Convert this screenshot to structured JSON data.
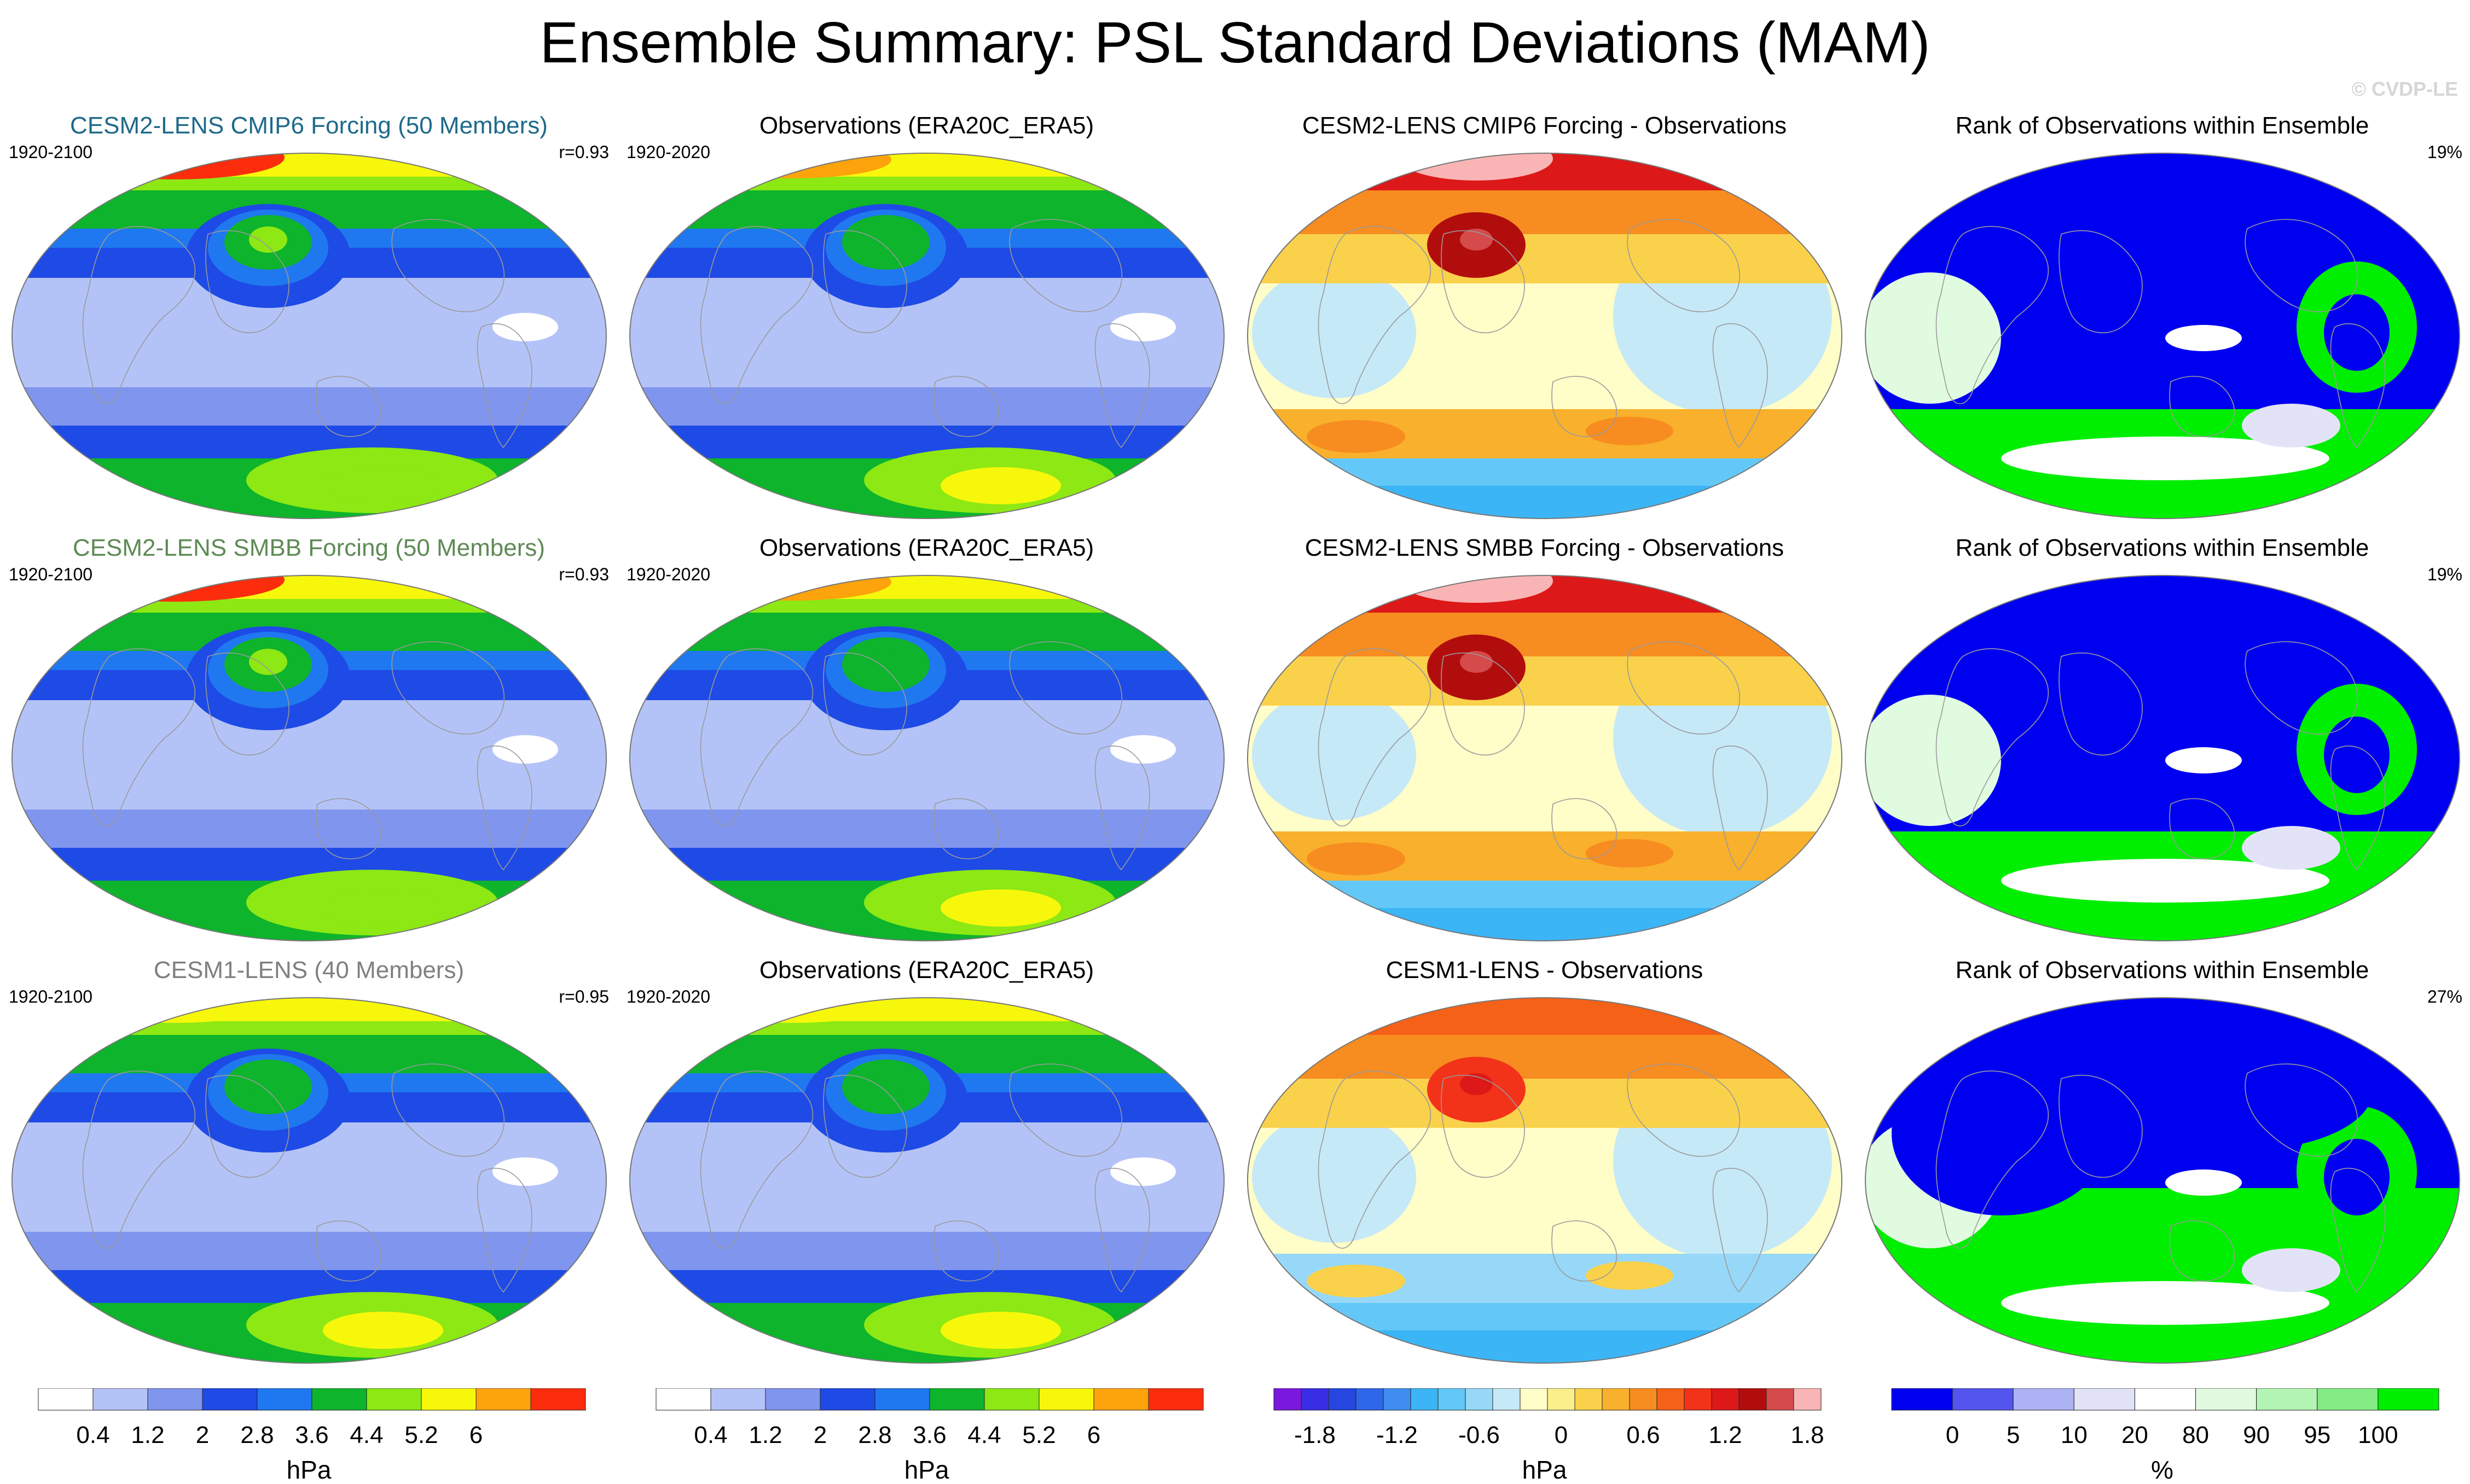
{
  "title": "Ensemble Summary: PSL Standard Deviations (MAM)",
  "watermark": "© CVDP-LE",
  "palettes": {
    "std": [
      "#ffffff",
      "#b4c3f7",
      "#7f95ee",
      "#1e4ae6",
      "#1f78f0",
      "#0db42c",
      "#8de813",
      "#f7f70c",
      "#fda30b",
      "#fb2d0d"
    ],
    "diff": [
      "#7a19dd",
      "#3a2de6",
      "#2646df",
      "#2e67ea",
      "#3f8df1",
      "#3cb5f6",
      "#63c8f7",
      "#97d8f8",
      "#c6e9f7",
      "#fffdc8",
      "#fbef8c",
      "#fad14a",
      "#f9b02c",
      "#f78c20",
      "#f56117",
      "#f2331a",
      "#dd1818",
      "#b20d0d",
      "#d54a4a",
      "#f9b5b5"
    ],
    "rank": [
      "#0000f0",
      "#5355ee",
      "#aeb3f5",
      "#e3e3f8",
      "#ffffff",
      "#e1fbe1",
      "#b4f4b4",
      "#82ec82",
      "#00ee00"
    ]
  },
  "chart_data": [
    {
      "type": "heatmap",
      "panel": "r1c1",
      "title": "CESM2-LENS CMIP6 Forcing (50 Members)",
      "title_color": "#1e6a8a",
      "period": "1920-2100",
      "corr": "r=0.93",
      "palette": "std",
      "max_level": 9,
      "nh_peak": 6,
      "sh_peak": 4
    },
    {
      "type": "heatmap",
      "panel": "r1c2",
      "title": "Observations (ERA20C_ERA5)",
      "title_color": "#000000",
      "period": "1920-2020",
      "corr": "",
      "palette": "std",
      "max_level": 8,
      "nh_peak": 5,
      "sh_peak": 5
    },
    {
      "type": "heatmap",
      "panel": "r1c3",
      "title": "CESM2-LENS CMIP6 Forcing - Observations",
      "title_color": "#000000",
      "period": "",
      "corr": "",
      "palette": "diff",
      "diff": "strong"
    },
    {
      "type": "heatmap",
      "panel": "r1c4",
      "title": "Rank of Observations within Ensemble",
      "title_color": "#000000",
      "period": "",
      "corr": "19%",
      "palette": "rank",
      "rank": "mostly-low"
    },
    {
      "type": "heatmap",
      "panel": "r2c1",
      "title": "CESM2-LENS SMBB Forcing (50 Members)",
      "title_color": "#5e8a55",
      "period": "1920-2100",
      "corr": "r=0.93",
      "palette": "std",
      "max_level": 9,
      "nh_peak": 6,
      "sh_peak": 4
    },
    {
      "type": "heatmap",
      "panel": "r2c2",
      "title": "Observations (ERA20C_ERA5)",
      "title_color": "#000000",
      "period": "1920-2020",
      "corr": "",
      "palette": "std",
      "max_level": 8,
      "nh_peak": 5,
      "sh_peak": 5
    },
    {
      "type": "heatmap",
      "panel": "r2c3",
      "title": "CESM2-LENS SMBB Forcing - Observations",
      "title_color": "#000000",
      "period": "",
      "corr": "",
      "palette": "diff",
      "diff": "strong"
    },
    {
      "type": "heatmap",
      "panel": "r2c4",
      "title": "Rank of Observations within Ensemble",
      "title_color": "#000000",
      "period": "",
      "corr": "19%",
      "palette": "rank",
      "rank": "mostly-low"
    },
    {
      "type": "heatmap",
      "panel": "r3c1",
      "title": "CESM1-LENS (40 Members)",
      "title_color": "#808080",
      "period": "1920-2100",
      "corr": "r=0.95",
      "palette": "std",
      "max_level": 7,
      "nh_peak": 5,
      "sh_peak": 5
    },
    {
      "type": "heatmap",
      "panel": "r3c2",
      "title": "Observations (ERA20C_ERA5)",
      "title_color": "#000000",
      "period": "1920-2020",
      "corr": "",
      "palette": "std",
      "max_level": 7,
      "nh_peak": 5,
      "sh_peak": 5
    },
    {
      "type": "heatmap",
      "panel": "r3c3",
      "title": "CESM1-LENS - Observations",
      "title_color": "#000000",
      "period": "",
      "corr": "",
      "palette": "diff",
      "diff": "weak"
    },
    {
      "type": "heatmap",
      "panel": "r3c4",
      "title": "Rank of Observations within Ensemble",
      "title_color": "#000000",
      "period": "",
      "corr": "27%",
      "palette": "rank",
      "rank": "mixed"
    }
  ],
  "colorbars": [
    {
      "palette": "std",
      "unit": "hPa",
      "labels": [
        "0.4",
        "1.2",
        "2",
        "2.8",
        "3.6",
        "4.4",
        "5.2",
        "6"
      ]
    },
    {
      "palette": "std",
      "unit": "hPa",
      "labels": [
        "0.4",
        "1.2",
        "2",
        "2.8",
        "3.6",
        "4.4",
        "5.2",
        "6"
      ]
    },
    {
      "palette": "diff",
      "unit": "hPa",
      "labels": [
        "-1.8",
        "-1.2",
        "-0.6",
        "0",
        "0.6",
        "1.2",
        "1.8"
      ]
    },
    {
      "palette": "rank",
      "unit": "%",
      "labels": [
        "0",
        "5",
        "10",
        "20",
        "80",
        "90",
        "95",
        "100"
      ]
    }
  ]
}
